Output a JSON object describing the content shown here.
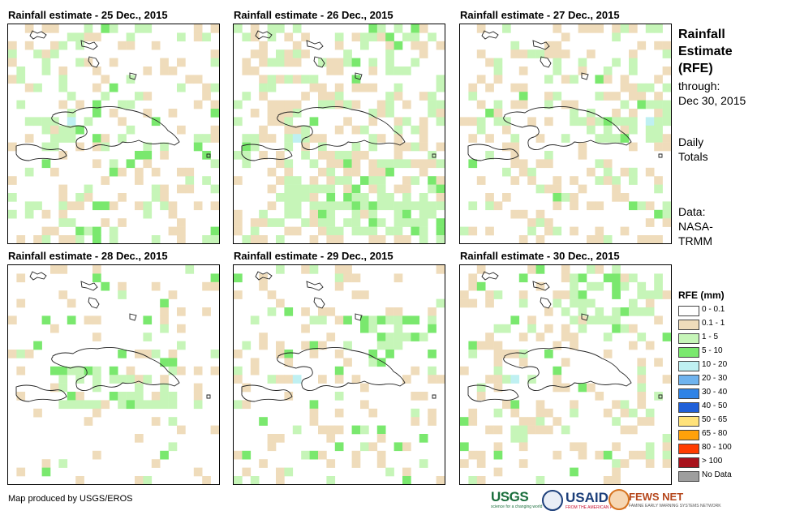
{
  "panels": [
    {
      "title": "Rainfall estimate - 25 Dec., 2015"
    },
    {
      "title": "Rainfall estimate - 26 Dec., 2015"
    },
    {
      "title": "Rainfall estimate - 27 Dec., 2015"
    },
    {
      "title": "Rainfall estimate - 28 Dec., 2015"
    },
    {
      "title": "Rainfall estimate - 29 Dec., 2015"
    },
    {
      "title": "Rainfall estimate - 30 Dec., 2015"
    }
  ],
  "side": {
    "title_line1": "Rainfall",
    "title_line2": "Estimate",
    "title_line3": "(RFE)",
    "through_label": "through:",
    "through_date": "Dec 30, 2015",
    "totals_line1": "Daily",
    "totals_line2": "Totals",
    "data_line1": "Data:",
    "data_line2": "NASA-",
    "data_line3": "TRMM"
  },
  "legend": {
    "title": "RFE (mm)",
    "items": [
      {
        "label": "0 - 0.1",
        "color": "#ffffff"
      },
      {
        "label": "0.1 - 1",
        "color": "#efdcbb"
      },
      {
        "label": "1 - 5",
        "color": "#c6f5b8"
      },
      {
        "label": "5 - 10",
        "color": "#7ae86e"
      },
      {
        "label": "10 - 20",
        "color": "#bff0f2"
      },
      {
        "label": "20 - 30",
        "color": "#6fb3ee"
      },
      {
        "label": "30 - 40",
        "color": "#2f83e6"
      },
      {
        "label": "40 - 50",
        "color": "#1f5fd8"
      },
      {
        "label": "50 - 65",
        "color": "#ffe27a"
      },
      {
        "label": "65 - 80",
        "color": "#ffa10a"
      },
      {
        "label": "80 - 100",
        "color": "#ff3c00"
      },
      {
        "label": "> 100",
        "color": "#a8121c"
      },
      {
        "label": "No Data",
        "color": "#9e9e9e"
      }
    ]
  },
  "footer": {
    "credit": "Map produced by USGS/EROS",
    "logo_usgs": "USGS",
    "logo_usgs_tagline": "science for a changing world",
    "logo_usaid": "USAID",
    "logo_usaid_tagline": "FROM THE AMERICAN PEOPLE",
    "logo_fews": "FEWS NET",
    "logo_fews_tagline": "FAMINE EARLY WARNING SYSTEMS NETWORK"
  }
}
